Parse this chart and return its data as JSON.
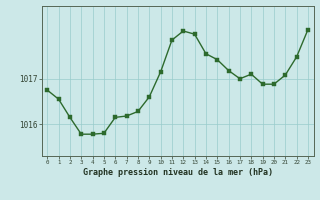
{
  "x": [
    0,
    1,
    2,
    3,
    4,
    5,
    6,
    7,
    8,
    9,
    10,
    11,
    12,
    13,
    14,
    15,
    16,
    17,
    18,
    19,
    20,
    21,
    22,
    23
  ],
  "y": [
    1016.75,
    1016.55,
    1016.15,
    1015.78,
    1015.78,
    1015.8,
    1016.15,
    1016.18,
    1016.28,
    1016.6,
    1017.15,
    1017.85,
    1018.05,
    1017.98,
    1017.55,
    1017.42,
    1017.18,
    1017.0,
    1017.1,
    1016.88,
    1016.88,
    1017.08,
    1017.48,
    1018.08
  ],
  "ylim_min": 1015.3,
  "ylim_max": 1018.6,
  "yticks": [
    1016,
    1017
  ],
  "xlabel": "Graphe pression niveau de la mer (hPa)",
  "line_color": "#2d6a2d",
  "marker_color": "#2d6a2d",
  "bg_color": "#cce8e8",
  "grid_color": "#99cccc",
  "axis_color": "#556655",
  "tick_color": "#334433",
  "label_color": "#223322"
}
